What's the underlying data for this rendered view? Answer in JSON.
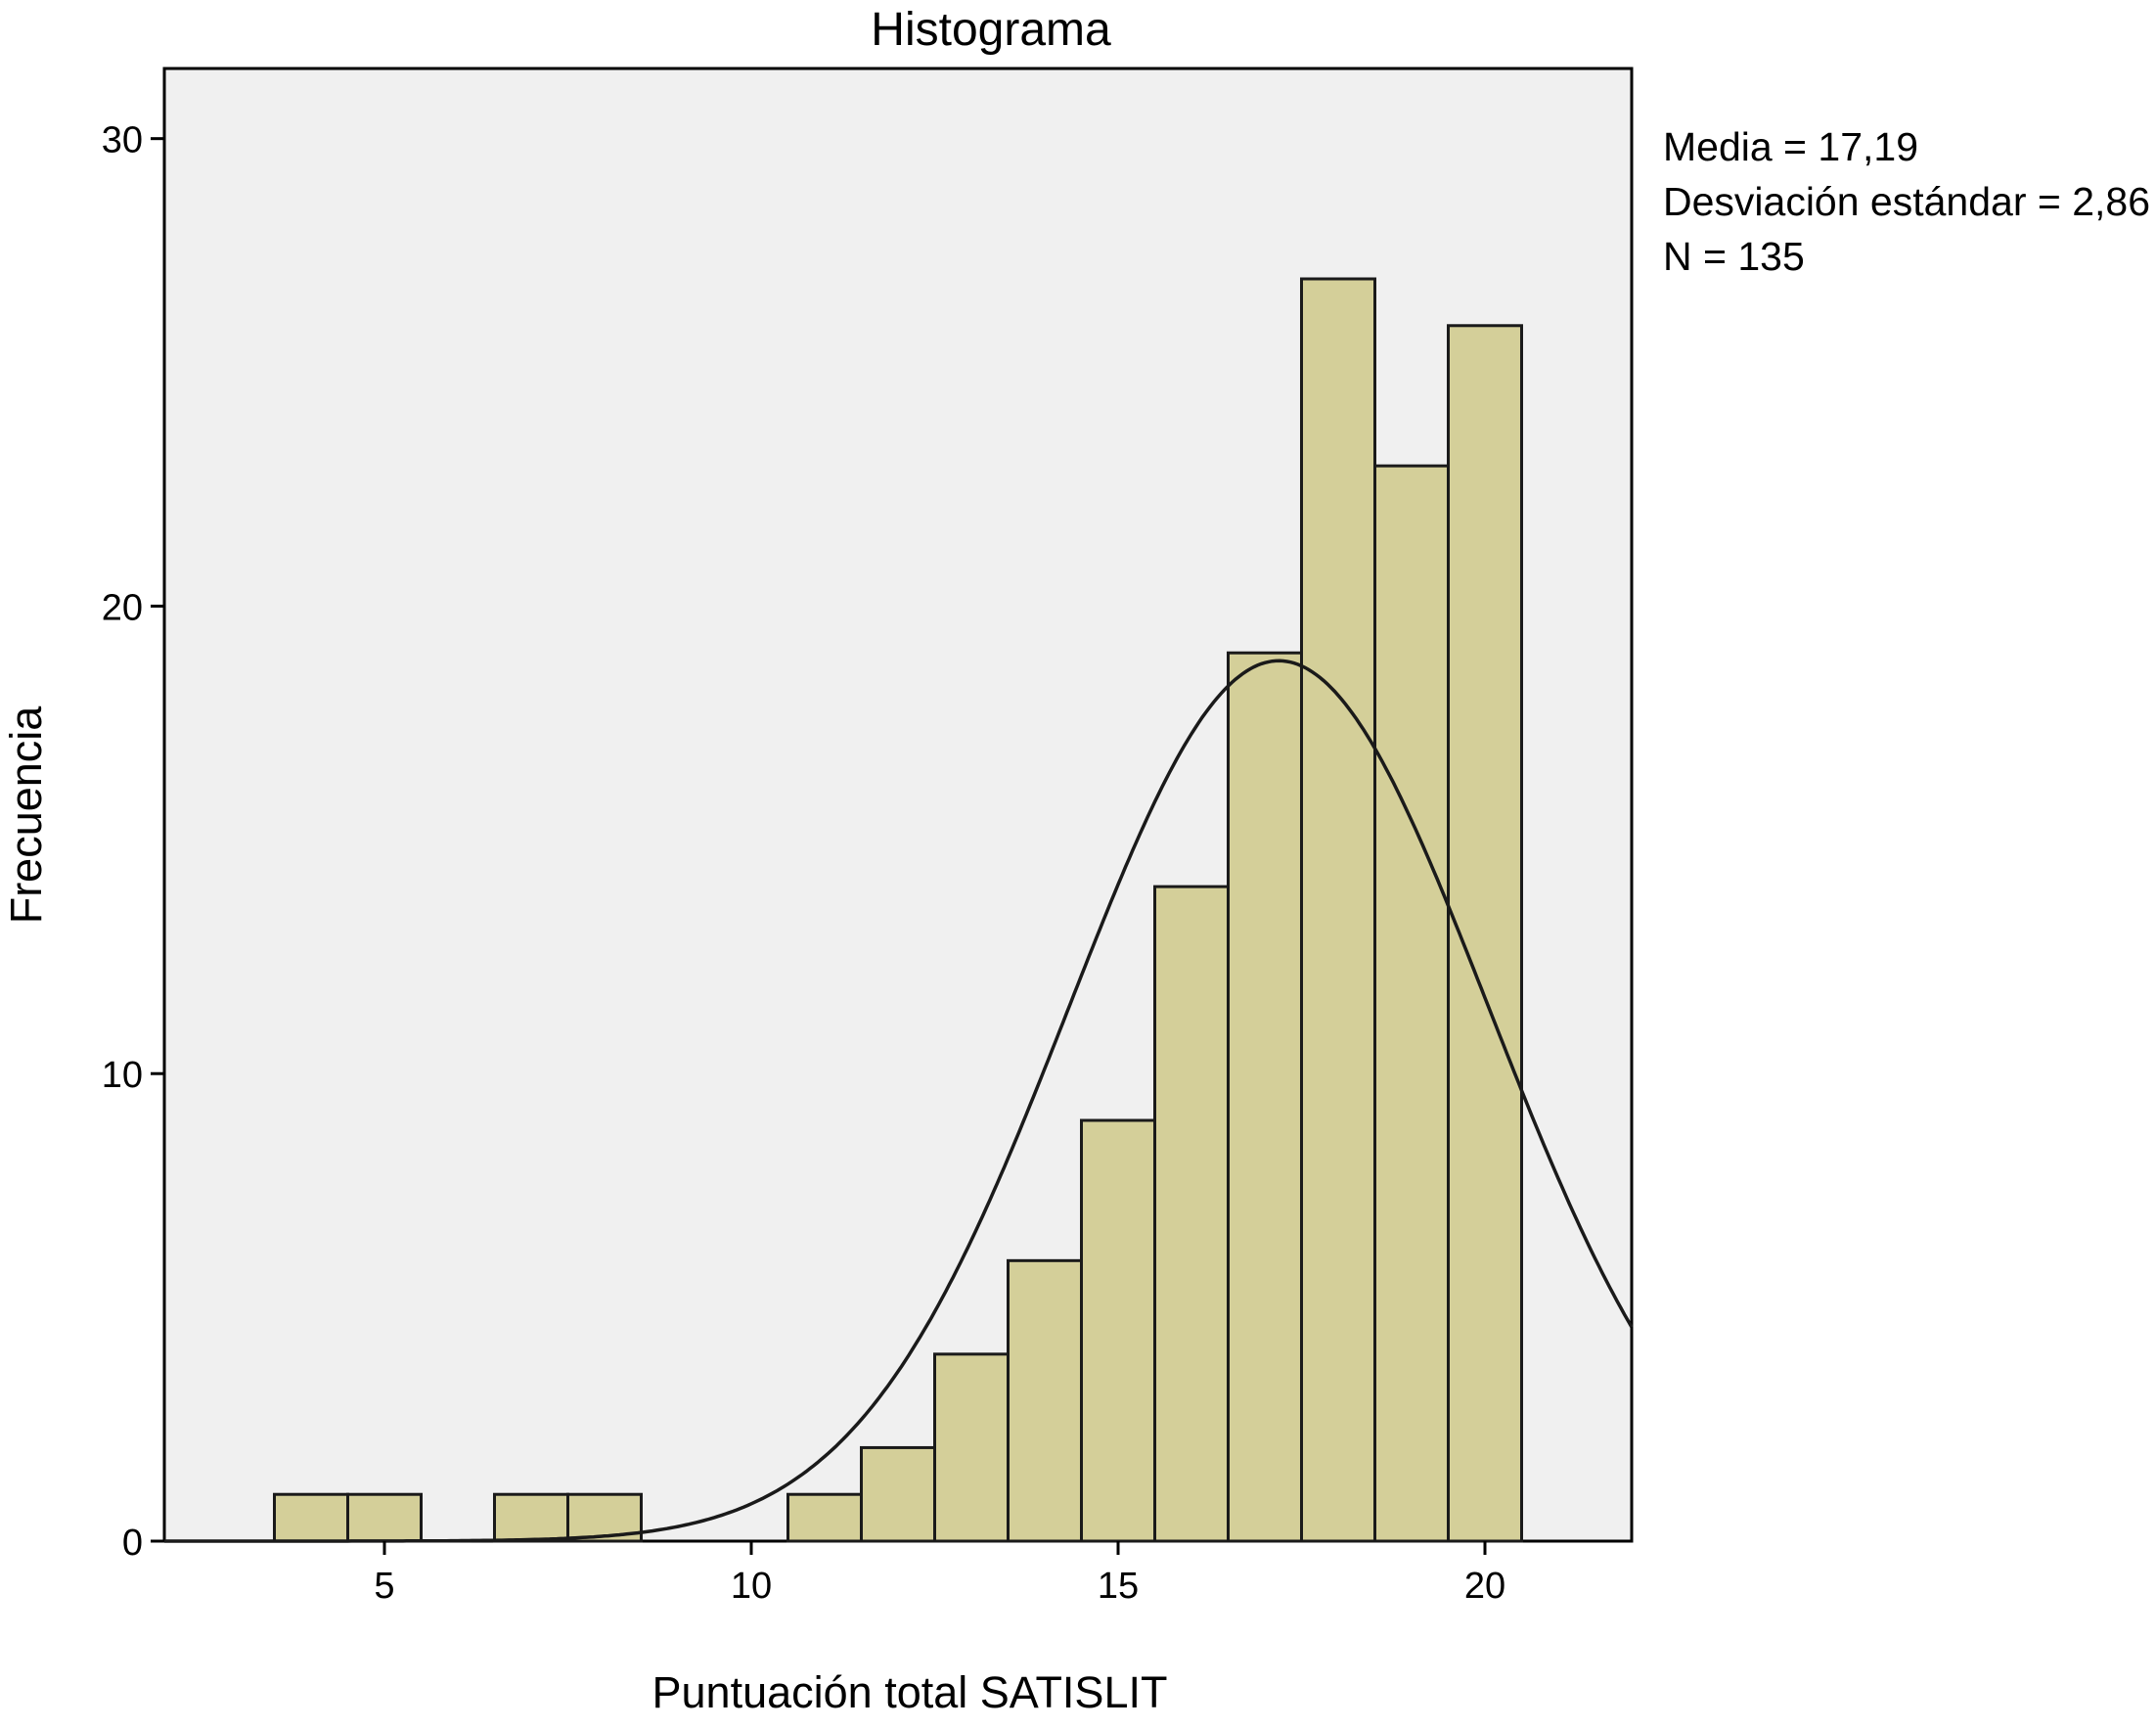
{
  "chart_data": {
    "type": "bar",
    "title": "Histograma",
    "xlabel": "Puntuación total SATISLIT",
    "ylabel": "Frecuencia",
    "xlim": [
      2,
      22
    ],
    "ylim": [
      0,
      31.5
    ],
    "x_ticks": [
      5,
      10,
      15,
      20
    ],
    "y_ticks": [
      0,
      10,
      20,
      30
    ],
    "bin_width": 1,
    "bins": [
      {
        "center": 4,
        "count": 1
      },
      {
        "center": 5,
        "count": 1
      },
      {
        "center": 7,
        "count": 1
      },
      {
        "center": 8,
        "count": 1
      },
      {
        "center": 11,
        "count": 1
      },
      {
        "center": 12,
        "count": 2
      },
      {
        "center": 13,
        "count": 4
      },
      {
        "center": 14,
        "count": 6
      },
      {
        "center": 15,
        "count": 9
      },
      {
        "center": 16,
        "count": 14
      },
      {
        "center": 17,
        "count": 19
      },
      {
        "center": 18,
        "count": 27
      },
      {
        "center": 19,
        "count": 23
      },
      {
        "center": 20,
        "count": 26
      }
    ],
    "normal_curve": {
      "mean": 17.19,
      "sd": 2.86,
      "n": 135
    },
    "bar_color": "#d4cf99",
    "plot_background": "#f0f0f0",
    "grid": false
  },
  "stats": {
    "mean_label": "Media  = 17,19",
    "sd_label": "Desviación estándar = 2,86",
    "n_label": "N = 135"
  }
}
